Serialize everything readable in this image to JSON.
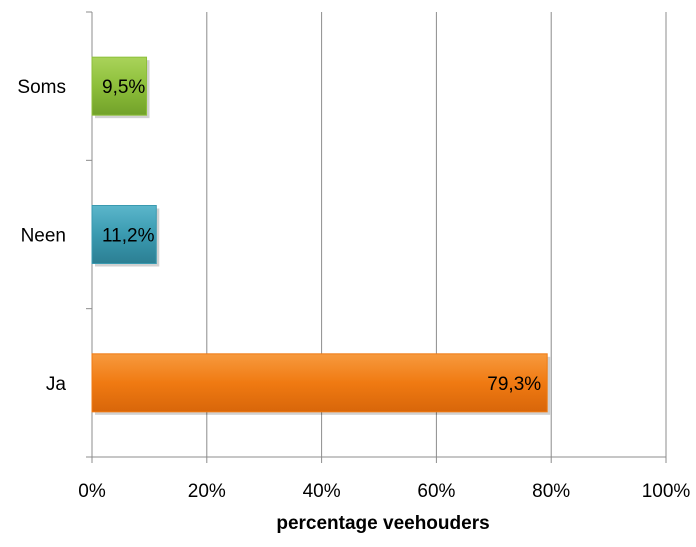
{
  "chart_data": {
    "type": "bar",
    "orientation": "horizontal",
    "categories": [
      "Ja",
      "Neen",
      "Soms"
    ],
    "values": [
      79.3,
      11.2,
      9.5
    ],
    "data_labels": [
      "79,3%",
      "11,2%",
      "9,5%"
    ],
    "bar_colors": [
      "#f07a12",
      "#3a9ab0",
      "#8dbf3a"
    ],
    "title": "",
    "xlabel": "percentage veehouders",
    "ylabel": "",
    "xlim": [
      0,
      100
    ],
    "x_ticks": [
      0,
      20,
      40,
      60,
      80,
      100
    ],
    "x_tick_labels": [
      "0%",
      "20%",
      "40%",
      "60%",
      "80%",
      "100%"
    ],
    "grid": "vertical",
    "legend": "none"
  }
}
